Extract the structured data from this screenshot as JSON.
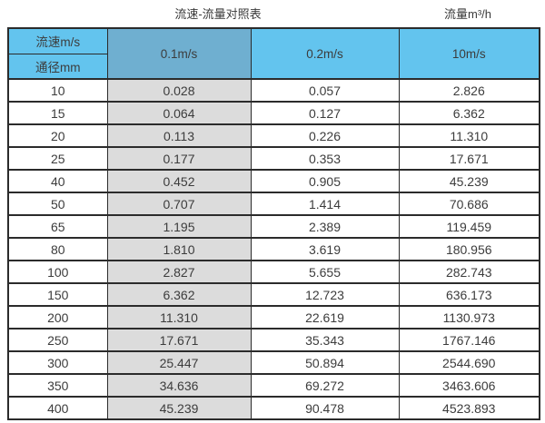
{
  "titles": {
    "left": "流速-流量对照表",
    "right": "流量m³/h"
  },
  "table": {
    "corner_top": "流速m/s",
    "corner_bottom": "通径mm",
    "speed_columns": [
      "0.1m/s",
      "0.2m/s",
      "10m/s"
    ]
  },
  "colors": {
    "header_blue": "#63c4ee",
    "header_dark_blue": "#6fafd0",
    "gray_column": "#dcdcdc",
    "border": "#2b2b2b"
  },
  "chart_data": {
    "type": "table",
    "title": "流速-流量对照表",
    "unit_label": "流量m³/h",
    "columns": [
      "通径mm",
      "0.1m/s",
      "0.2m/s",
      "10m/s"
    ],
    "rows": [
      [
        "10",
        "0.028",
        "0.057",
        "2.826"
      ],
      [
        "15",
        "0.064",
        "0.127",
        "6.362"
      ],
      [
        "20",
        "0.113",
        "0.226",
        "11.310"
      ],
      [
        "25",
        "0.177",
        "0.353",
        "17.671"
      ],
      [
        "40",
        "0.452",
        "0.905",
        "45.239"
      ],
      [
        "50",
        "0.707",
        "1.414",
        "70.686"
      ],
      [
        "65",
        "1.195",
        "2.389",
        "119.459"
      ],
      [
        "80",
        "1.810",
        "3.619",
        "180.956"
      ],
      [
        "100",
        "2.827",
        "5.655",
        "282.743"
      ],
      [
        "150",
        "6.362",
        "12.723",
        "636.173"
      ],
      [
        "200",
        "11.310",
        "22.619",
        "1130.973"
      ],
      [
        "250",
        "17.671",
        "35.343",
        "1767.146"
      ],
      [
        "300",
        "25.447",
        "50.894",
        "2544.690"
      ],
      [
        "350",
        "34.636",
        "69.272",
        "3463.606"
      ],
      [
        "400",
        "45.239",
        "90.478",
        "4523.893"
      ]
    ]
  }
}
